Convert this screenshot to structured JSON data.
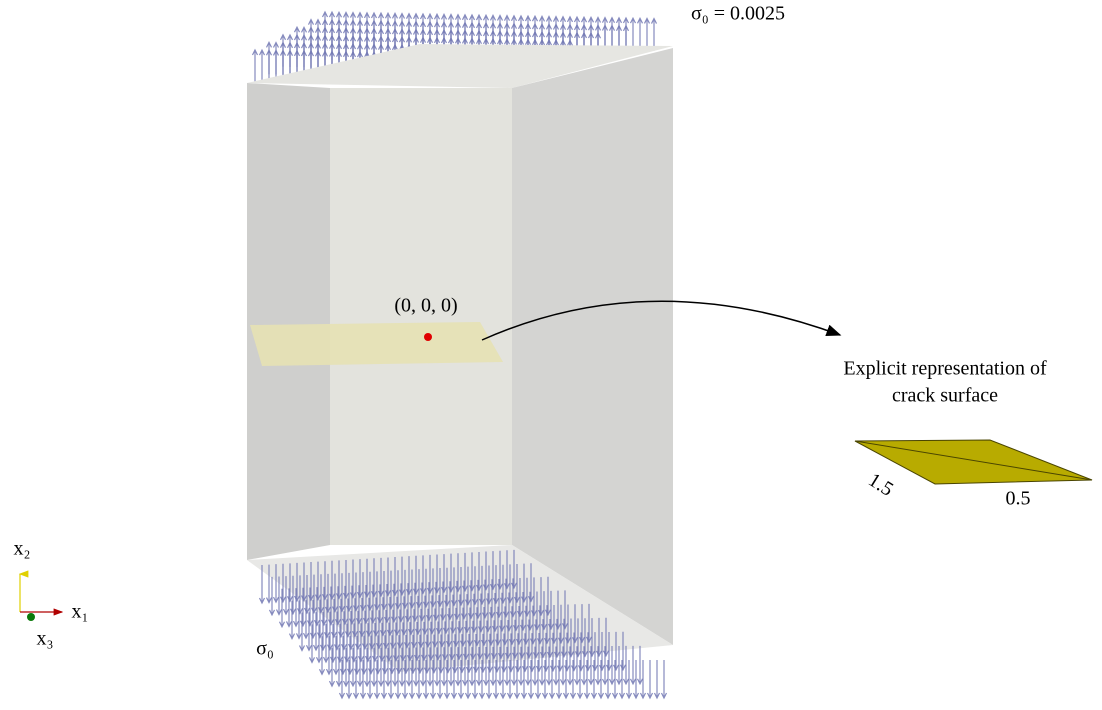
{
  "load_label_top": "σ₀ = 0.0025",
  "load_label_bottom": "σ₀",
  "origin_label": "(0, 0, 0)",
  "callout": {
    "line1": "Explicit representation of",
    "line2": "crack surface"
  },
  "crack_dimensions": {
    "length": "1.5",
    "width": "0.5"
  },
  "axes": {
    "x1": "x₁",
    "x2": "x₂",
    "x3": "x₃"
  }
}
